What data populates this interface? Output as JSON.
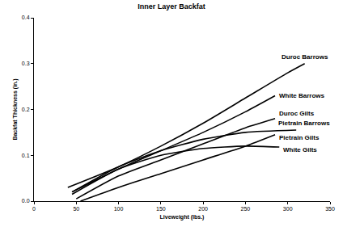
{
  "chart_data": {
    "type": "line",
    "title": "Inner Layer Backfat",
    "x_label": "Liveweight (lbs.)",
    "y_label": "Backfat Thickness (in.)",
    "xlim": [
      0,
      350
    ],
    "xticks": [
      0,
      50,
      100,
      150,
      200,
      250,
      300,
      350
    ],
    "ylim": [
      0,
      0.4
    ],
    "yticks": [
      {
        "value": 0,
        "label": "0.0"
      },
      0.1,
      0.2,
      0.3,
      0.4
    ],
    "grid": false,
    "series": [
      {
        "name": "Duroc Barrows",
        "color": "#000000",
        "x": [
          40,
          100,
          150,
          200,
          250,
          300,
          320
        ],
        "values": [
          0.03,
          0.075,
          0.12,
          0.17,
          0.225,
          0.28,
          0.3
        ]
      },
      {
        "name": "White Barrows",
        "color": "#000000",
        "x": [
          45,
          100,
          150,
          200,
          250,
          285
        ],
        "values": [
          0.02,
          0.07,
          0.11,
          0.15,
          0.195,
          0.23
        ]
      },
      {
        "name": "Duroc Gilts",
        "color": "#000000",
        "x": [
          50,
          100,
          150,
          200,
          250,
          285
        ],
        "values": [
          0.005,
          0.055,
          0.09,
          0.125,
          0.16,
          0.18
        ]
      },
      {
        "name": "Pietrain Barrows",
        "color": "#000000",
        "x": [
          45,
          100,
          150,
          200,
          250,
          310
        ],
        "values": [
          0.02,
          0.075,
          0.11,
          0.135,
          0.15,
          0.155
        ]
      },
      {
        "name": "Pietrain Gilts",
        "color": "#000000",
        "x": [
          55,
          100,
          150,
          200,
          250,
          285
        ],
        "values": [
          0,
          0.03,
          0.06,
          0.09,
          0.12,
          0.145
        ]
      },
      {
        "name": "White Gilts",
        "color": "#000000",
        "x": [
          45,
          100,
          150,
          200,
          250,
          290
        ],
        "values": [
          0.015,
          0.07,
          0.1,
          0.115,
          0.12,
          0.118
        ]
      }
    ]
  }
}
